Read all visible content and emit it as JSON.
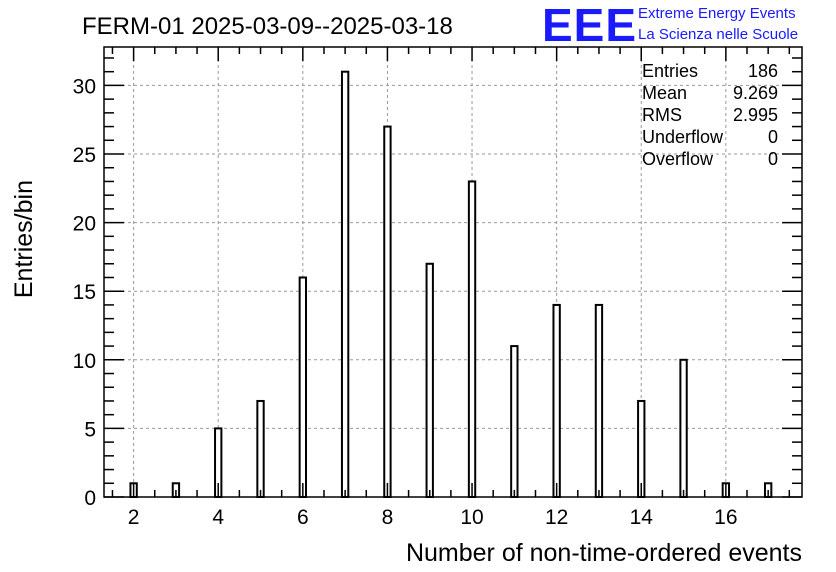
{
  "title": "FERM-01 2025-03-09--2025-03-18",
  "logo": {
    "mark": "EEE",
    "line1": "Extreme Energy Events",
    "line2": "La Scienza nelle Scuole",
    "color": "#1a1aff"
  },
  "stats": {
    "entries_label": "Entries",
    "entries_value": "186",
    "mean_label": "Mean",
    "mean_value": "9.269",
    "rms_label": "RMS",
    "rms_value": "2.995",
    "underflow_label": "Underflow",
    "underflow_value": "0",
    "overflow_label": "Overflow",
    "overflow_value": "0"
  },
  "chart_data": {
    "type": "bar",
    "title": "FERM-01 2025-03-09--2025-03-18",
    "xlabel": "Number of non-time-ordered events",
    "ylabel": "Entries/bin",
    "xlim": [
      1.3,
      17.8
    ],
    "ylim": [
      0,
      32.8
    ],
    "x_ticks": [
      2,
      4,
      6,
      8,
      10,
      12,
      14,
      16
    ],
    "y_ticks": [
      0,
      5,
      10,
      15,
      20,
      25,
      30
    ],
    "grid": true,
    "bar_width": 0.15,
    "x": [
      2,
      3,
      4,
      5,
      6,
      7,
      8,
      9,
      10,
      11,
      12,
      13,
      14,
      15,
      16,
      17
    ],
    "values": [
      1,
      1,
      5,
      7,
      16,
      31,
      27,
      17,
      23,
      11,
      14,
      14,
      7,
      10,
      1,
      1
    ],
    "colors": {
      "bar_fill": "#ffffff",
      "bar_stroke": "#000000",
      "grid": "#999999"
    }
  }
}
